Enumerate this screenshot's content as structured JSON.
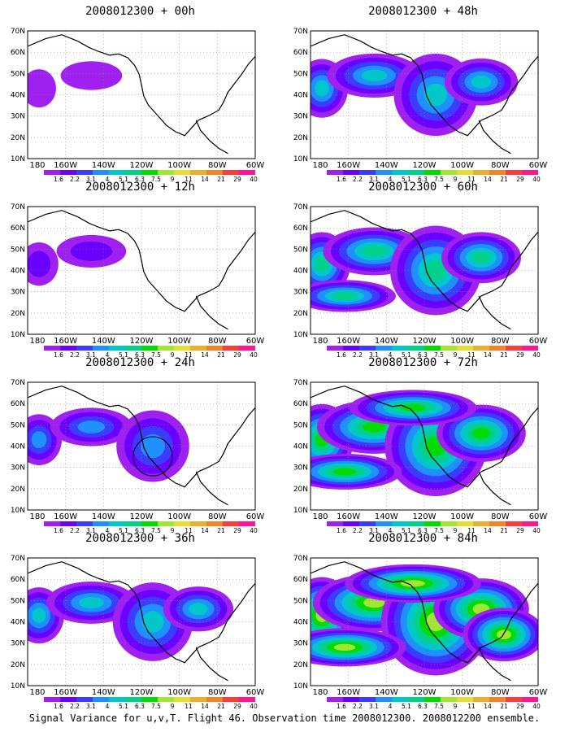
{
  "figure": {
    "footer": "Signal Variance for u,v,T. Flight 46. Observation time 2008012300. 2008012200 ensemble.",
    "y_axis_labels": [
      "70N",
      "60N",
      "50N",
      "40N",
      "30N",
      "20N",
      "10N"
    ],
    "x_axis_labels": [
      "180",
      "160W",
      "140W",
      "120W",
      "100W",
      "80W",
      "60W"
    ],
    "colorbar": {
      "values": [
        "1.6",
        "2.2",
        "3.1",
        "4",
        "5.1",
        "6.3",
        "7.5",
        "9",
        "11",
        "14",
        "21",
        "29",
        "40"
      ],
      "colors": [
        "#a020f0",
        "#6a00ff",
        "#3c3cff",
        "#1e90ff",
        "#00c8c8",
        "#00d28c",
        "#00dc00",
        "#a0e632",
        "#e6dc32",
        "#e6af2d",
        "#f08228",
        "#fa3c3c",
        "#ff1493"
      ]
    },
    "land_color": "#000000",
    "background_color": "#ffffff",
    "panels": [
      {
        "title": "2008012300 + 00h",
        "intensity": 0.15,
        "circle": false
      },
      {
        "title": "2008012300 + 48h",
        "intensity": 0.55,
        "circle": false
      },
      {
        "title": "2008012300 + 12h",
        "intensity": 0.25,
        "circle": false
      },
      {
        "title": "2008012300 + 60h",
        "intensity": 0.65,
        "circle": false
      },
      {
        "title": "2008012300 + 24h",
        "intensity": 0.4,
        "circle": true
      },
      {
        "title": "2008012300 + 72h",
        "intensity": 0.8,
        "circle": false
      },
      {
        "title": "2008012300 + 36h",
        "intensity": 0.5,
        "circle": false
      },
      {
        "title": "2008012300 + 84h",
        "intensity": 0.9,
        "circle": false
      }
    ]
  }
}
